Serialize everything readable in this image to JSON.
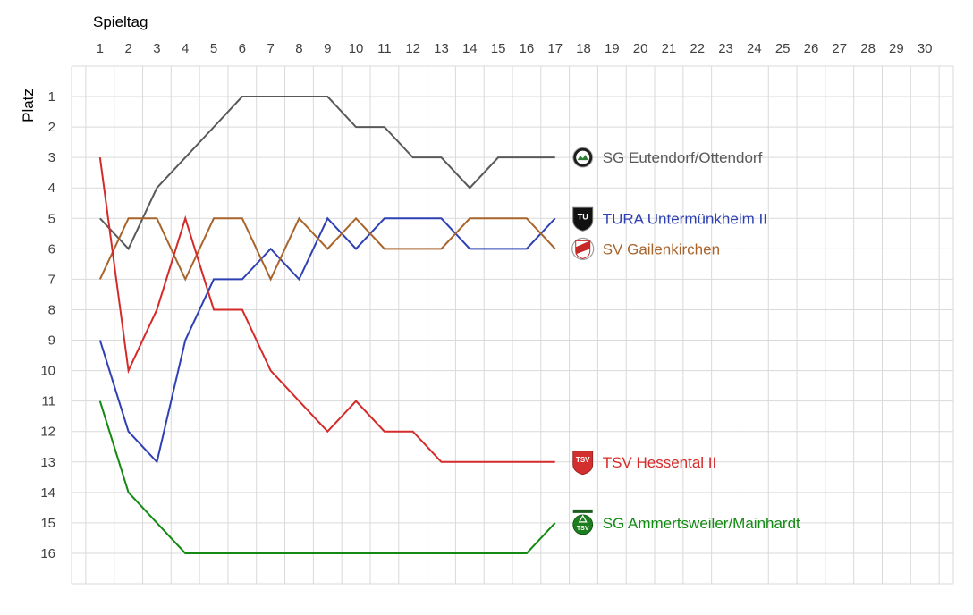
{
  "chart_data": {
    "type": "line",
    "x_title": "Spieltag",
    "y_title": "Platz",
    "x_ticks": [
      1,
      2,
      3,
      4,
      5,
      6,
      7,
      8,
      9,
      10,
      11,
      12,
      13,
      14,
      15,
      16,
      17,
      18,
      19,
      20,
      21,
      22,
      23,
      24,
      25,
      26,
      27,
      28,
      29,
      30
    ],
    "y_ticks": [
      1,
      2,
      3,
      4,
      5,
      6,
      7,
      8,
      9,
      10,
      11,
      12,
      13,
      14,
      15,
      16
    ],
    "xlim": [
      0,
      31
    ],
    "ylim": [
      0,
      17
    ],
    "y_inverted": true,
    "x_axis_position": "top",
    "grid": true,
    "legend": "labels at line ends, with club crest icons",
    "series": [
      {
        "name": "SG Eutendorf/Ottendorf",
        "color": "#595959",
        "icon": "sg-eutendorf-crest-icon",
        "x": [
          1,
          2,
          3,
          4,
          5,
          6,
          7,
          8,
          9,
          10,
          11,
          12,
          13,
          14,
          15,
          16,
          17
        ],
        "values": [
          5,
          6,
          4,
          3,
          2,
          1,
          1,
          1,
          1,
          2,
          2,
          3,
          3,
          4,
          3,
          3,
          3
        ]
      },
      {
        "name": "TURA Untermünkheim II",
        "color": "#2e40b3",
        "icon": "tura-untermuenkheim-crest-icon",
        "x": [
          1,
          2,
          3,
          4,
          5,
          6,
          7,
          8,
          9,
          10,
          11,
          12,
          13,
          14,
          15,
          16,
          17
        ],
        "values": [
          9,
          12,
          13,
          9,
          7,
          7,
          6,
          7,
          5,
          6,
          5,
          5,
          5,
          6,
          6,
          6,
          5
        ]
      },
      {
        "name": "SV Gailenkirchen",
        "color": "#a8642b",
        "icon": "sv-gailenkirchen-crest-icon",
        "x": [
          1,
          2,
          3,
          4,
          5,
          6,
          7,
          8,
          9,
          10,
          11,
          12,
          13,
          14,
          15,
          16,
          17
        ],
        "values": [
          7,
          5,
          5,
          7,
          5,
          5,
          7,
          5,
          6,
          5,
          6,
          6,
          6,
          5,
          5,
          5,
          6
        ]
      },
      {
        "name": "TSV Hessental II",
        "color": "#d42a2a",
        "icon": "tsv-hessental-crest-icon",
        "x": [
          1,
          2,
          3,
          4,
          5,
          6,
          7,
          8,
          9,
          10,
          11,
          12,
          13,
          14,
          15,
          16,
          17
        ],
        "values": [
          3,
          10,
          8,
          5,
          8,
          8,
          10,
          11,
          12,
          11,
          12,
          12,
          13,
          13,
          13,
          13,
          13
        ]
      },
      {
        "name": "SG Ammertsweiler/Mainhardt",
        "color": "#138a13",
        "icon": "sg-ammertsweiler-crest-icon",
        "x": [
          1,
          2,
          3,
          4,
          5,
          6,
          7,
          8,
          9,
          10,
          11,
          12,
          13,
          14,
          15,
          16,
          17
        ],
        "values": [
          11,
          14,
          15,
          16,
          16,
          16,
          16,
          16,
          16,
          16,
          16,
          16,
          16,
          16,
          16,
          16,
          15
        ]
      }
    ]
  }
}
